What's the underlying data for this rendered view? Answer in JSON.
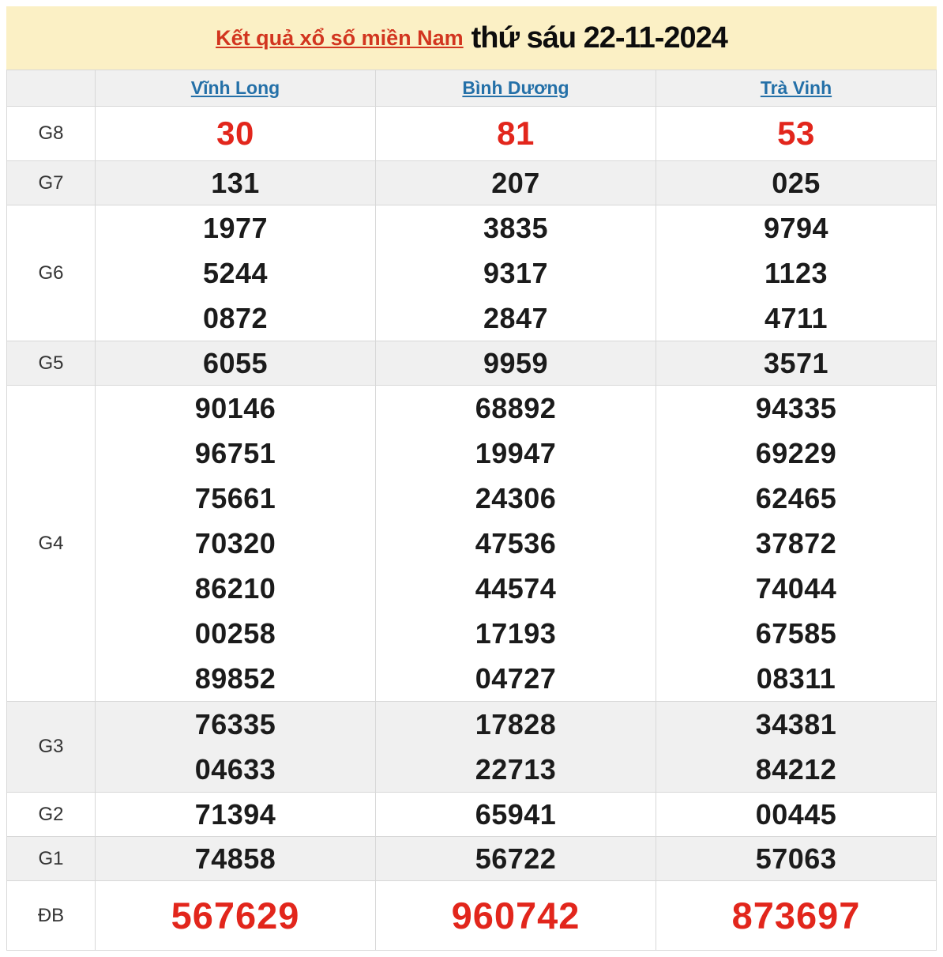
{
  "banner": {
    "title_link": "Kết quả xổ số miền Nam",
    "title_date": "thứ sáu 22-11-2024",
    "bg_color": "#fbf0c5",
    "link_color": "#d2351f"
  },
  "colors": {
    "highlight_red": "#e2261c",
    "province_link_blue": "#2470a8",
    "shaded_row": "#f0f0f0",
    "border": "#d8d8d8"
  },
  "table": {
    "provinces": [
      "Vĩnh Long",
      "Bình Dương",
      "Trà Vinh"
    ],
    "rows": [
      {
        "key": "g8",
        "label": "G8",
        "values": [
          [
            "30"
          ],
          [
            "81"
          ],
          [
            "53"
          ]
        ]
      },
      {
        "key": "g7",
        "label": "G7",
        "values": [
          [
            "131"
          ],
          [
            "207"
          ],
          [
            "025"
          ]
        ]
      },
      {
        "key": "g6",
        "label": "G6",
        "values": [
          [
            "1977",
            "5244",
            "0872"
          ],
          [
            "3835",
            "9317",
            "2847"
          ],
          [
            "9794",
            "1123",
            "4711"
          ]
        ]
      },
      {
        "key": "g5",
        "label": "G5",
        "values": [
          [
            "6055"
          ],
          [
            "9959"
          ],
          [
            "3571"
          ]
        ]
      },
      {
        "key": "g4",
        "label": "G4",
        "values": [
          [
            "90146",
            "96751",
            "75661",
            "70320",
            "86210",
            "00258",
            "89852"
          ],
          [
            "68892",
            "19947",
            "24306",
            "47536",
            "44574",
            "17193",
            "04727"
          ],
          [
            "94335",
            "69229",
            "62465",
            "37872",
            "74044",
            "67585",
            "08311"
          ]
        ]
      },
      {
        "key": "g3",
        "label": "G3",
        "values": [
          [
            "76335",
            "04633"
          ],
          [
            "17828",
            "22713"
          ],
          [
            "34381",
            "84212"
          ]
        ]
      },
      {
        "key": "g2",
        "label": "G2",
        "values": [
          [
            "71394"
          ],
          [
            "65941"
          ],
          [
            "00445"
          ]
        ]
      },
      {
        "key": "g1",
        "label": "G1",
        "values": [
          [
            "74858"
          ],
          [
            "56722"
          ],
          [
            "57063"
          ]
        ]
      },
      {
        "key": "db",
        "label": "ĐB",
        "values": [
          [
            "567629"
          ],
          [
            "960742"
          ],
          [
            "873697"
          ]
        ]
      }
    ]
  }
}
